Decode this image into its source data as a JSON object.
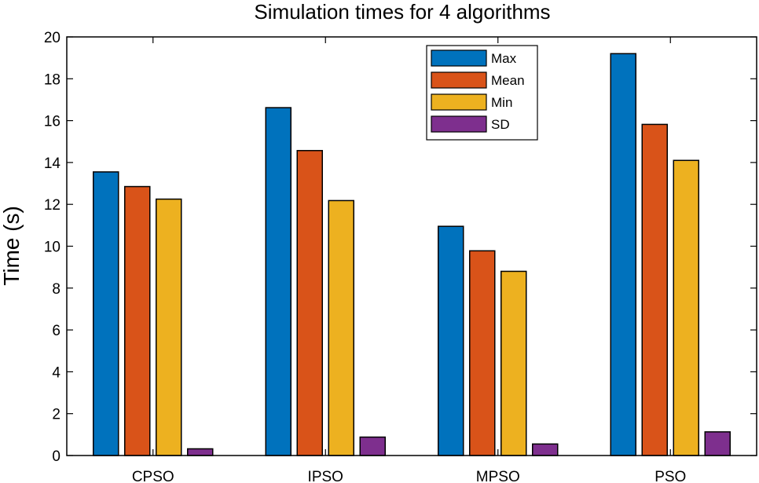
{
  "chart_data": {
    "type": "bar",
    "title": "Simulation times for 4 algorithms",
    "xlabel": "",
    "ylabel": "Time (s)",
    "ylim": [
      0,
      20
    ],
    "yticks": [
      0,
      2,
      4,
      6,
      8,
      10,
      12,
      14,
      16,
      18,
      20
    ],
    "grid": false,
    "legend_position": "top-right",
    "categories": [
      "CPSO",
      "IPSO",
      "MPSO",
      "PSO"
    ],
    "series": [
      {
        "name": "Max",
        "color": "#0072BD",
        "values": [
          13.55,
          16.62,
          10.95,
          19.2
        ]
      },
      {
        "name": "Mean",
        "color": "#D95319",
        "values": [
          12.85,
          14.57,
          9.78,
          15.82
        ]
      },
      {
        "name": "Min",
        "color": "#EDB120",
        "values": [
          12.25,
          12.18,
          8.8,
          14.1
        ]
      },
      {
        "name": "SD",
        "color": "#7E2F8E",
        "values": [
          0.32,
          0.88,
          0.55,
          1.13
        ]
      }
    ]
  }
}
